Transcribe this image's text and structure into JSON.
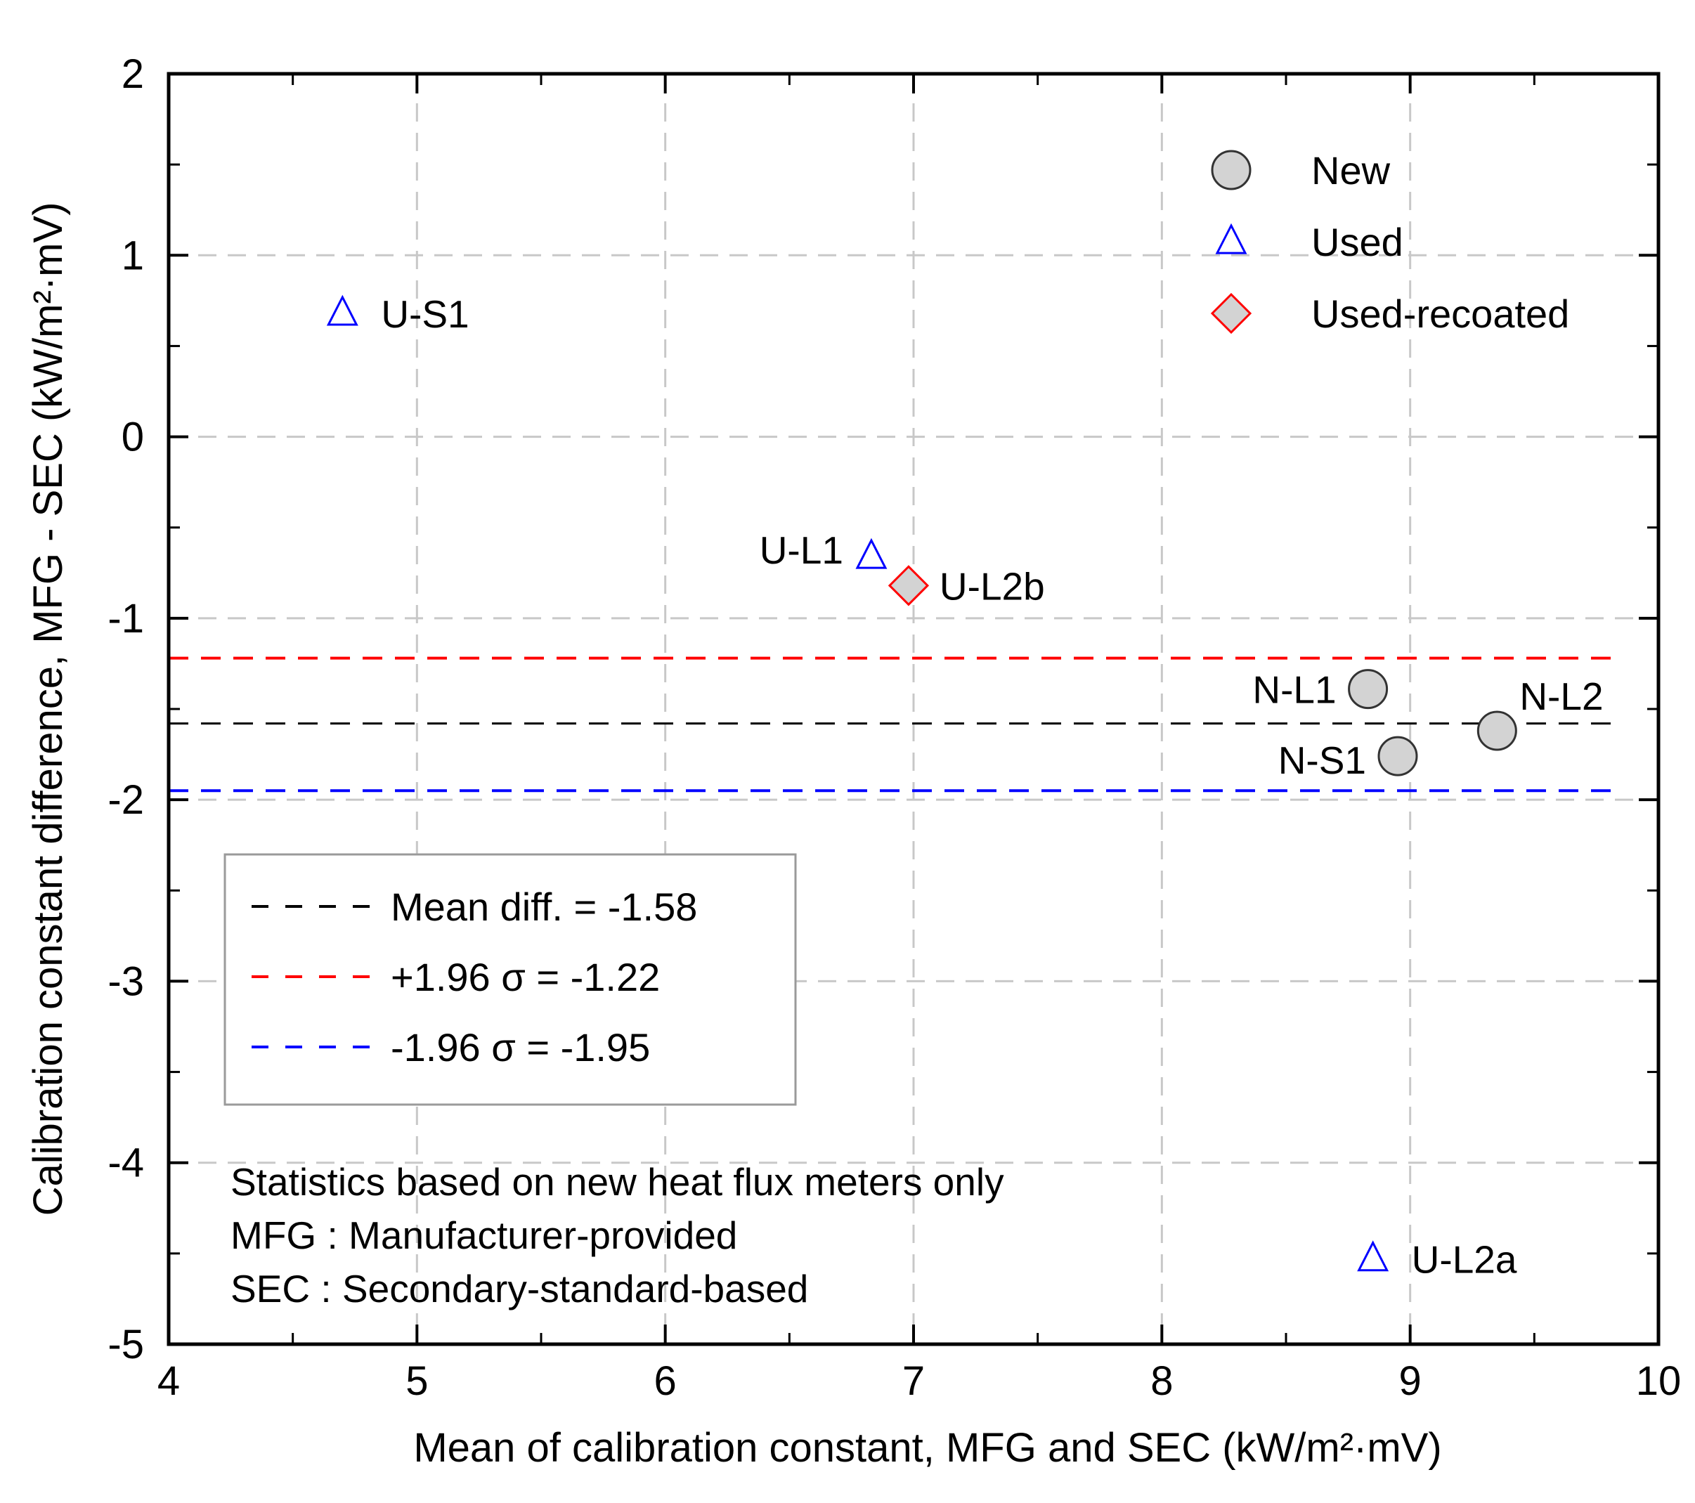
{
  "chart_data": {
    "type": "scatter",
    "xlabel": "Mean of calibration constant, MFG and SEC (kW/m²·mV)",
    "ylabel": "Calibration constant difference, MFG - SEC (kW/m²·mV)",
    "xlim": [
      4,
      10
    ],
    "ylim": [
      -5,
      2
    ],
    "xticks": [
      4,
      5,
      6,
      7,
      8,
      9,
      10
    ],
    "yticks": [
      -5,
      -4,
      -3,
      -2,
      -1,
      0,
      1,
      2
    ],
    "grid": true,
    "series": [
      {
        "name": "New",
        "marker": "circle",
        "fill": "#d3d3d3",
        "stroke": "#333333",
        "points": [
          {
            "label": "N-L1",
            "x": 8.83,
            "y": -1.39
          },
          {
            "label": "N-S1",
            "x": 8.95,
            "y": -1.76
          },
          {
            "label": "N-L2",
            "x": 9.35,
            "y": -1.62
          }
        ]
      },
      {
        "name": "Used",
        "marker": "triangle",
        "fill": "none",
        "stroke": "#0000ff",
        "points": [
          {
            "label": "U-S1",
            "x": 4.7,
            "y": 0.68
          },
          {
            "label": "U-L1",
            "x": 6.83,
            "y": -0.66
          },
          {
            "label": "U-L2a",
            "x": 8.85,
            "y": -4.53
          }
        ]
      },
      {
        "name": "Used-recoated",
        "marker": "diamond",
        "fill": "#d3d3d3",
        "stroke": "#ff0000",
        "points": [
          {
            "label": "U-L2b",
            "x": 6.98,
            "y": -0.82
          }
        ]
      }
    ],
    "reference_lines": [
      {
        "name": "Mean diff. = -1.58",
        "y": -1.58,
        "color": "#000000",
        "x_start": 4,
        "x_end": 9.85
      },
      {
        "name": "+1.96 σ = -1.22",
        "y": -1.22,
        "color": "#ff0000",
        "x_start": 4,
        "x_end": 9.85
      },
      {
        "name": "-1.96 σ = -1.95",
        "y": -1.95,
        "color": "#0000ff",
        "x_start": 4,
        "x_end": 9.85
      }
    ],
    "legend_position": "top-right",
    "annotations": [
      "Statistics based on new heat flux meters only",
      "MFG : Manufacturer-provided",
      "SEC : Secondary-standard-based"
    ]
  }
}
